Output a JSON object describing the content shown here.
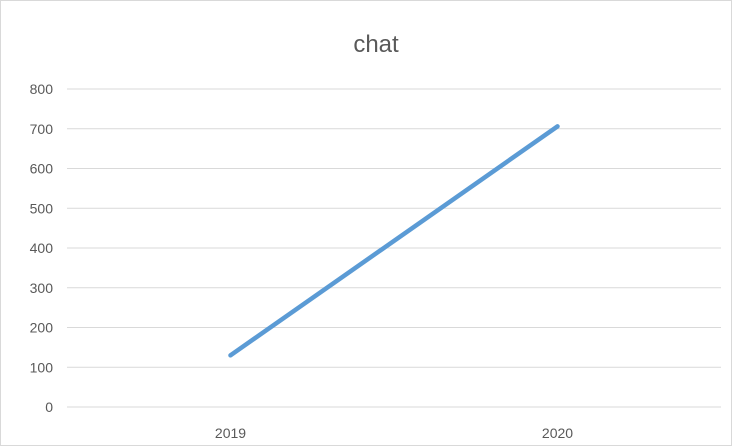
{
  "chart_data": {
    "type": "line",
    "title": "chat",
    "xlabel": "",
    "ylabel": "",
    "categories": [
      "2019",
      "2020"
    ],
    "series": [
      {
        "values": [
          130,
          706
        ]
      }
    ],
    "ylim": [
      0,
      800
    ],
    "yticks": [
      "0",
      "100",
      "200",
      "300",
      "400",
      "500",
      "600",
      "700",
      "800"
    ],
    "grid": true,
    "legend": "none",
    "colors": {
      "line": "#5b9bd5",
      "grid": "#d9d9d9",
      "text": "#595959",
      "border": "#d9d9d9"
    }
  }
}
